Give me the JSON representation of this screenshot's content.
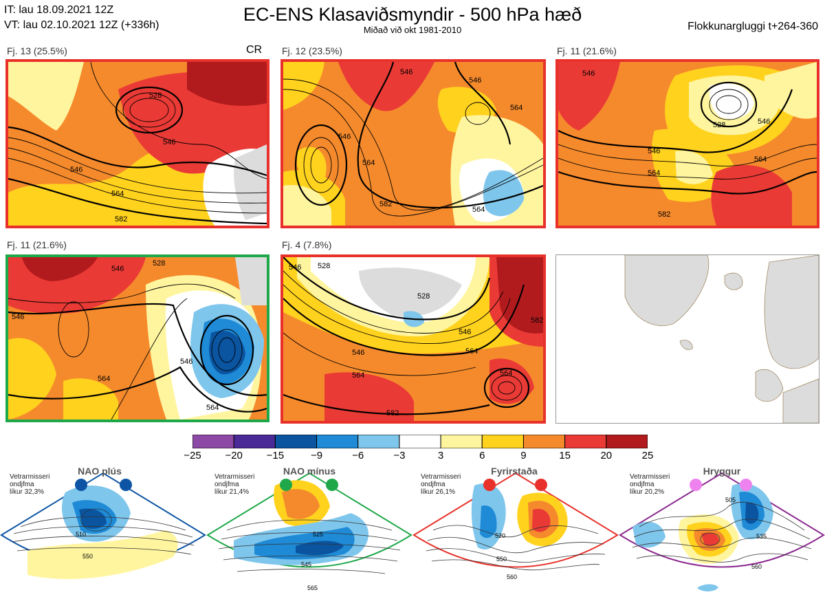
{
  "header": {
    "it_line": "IT: lau 18.09.2021 12Z",
    "vt_line": "VT: lau 02.10.2021 12Z  (+336h)",
    "title": "EC-ENS Klasaviðsmyndir - 500 hPa hæð",
    "subtitle": "Miðað við okt 1981-2010",
    "window": "Flokkunargluggi t+264-360"
  },
  "panels": [
    {
      "label": "Fj. 13 (25.5%)",
      "border_color": "#e8312a",
      "extra": "CR",
      "contours": [
        "528",
        "546",
        "546",
        "564",
        "582"
      ]
    },
    {
      "label": "Fj. 12 (23.5%)",
      "border_color": "#e8312a",
      "contours": [
        "546",
        "546",
        "546",
        "564",
        "564",
        "582",
        "564"
      ]
    },
    {
      "label": "Fj. 11 (21.6%)",
      "border_color": "#e8312a",
      "contours": [
        "546",
        "528",
        "546",
        "546",
        "564",
        "564",
        "582"
      ]
    },
    {
      "label": "Fj. 11 (21.6%)",
      "border_color": "#1fa84a",
      "contours": [
        "528",
        "546",
        "546",
        "546",
        "564",
        "564"
      ]
    },
    {
      "label": "Fj. 4 (7.8%)",
      "border_color": "#e8312a",
      "contours": [
        "546",
        "528",
        "528",
        "546",
        "546",
        "564",
        "564",
        "564",
        "582",
        "582"
      ]
    }
  ],
  "chart_data": {
    "type": "heatmap",
    "title": "EC-ENS Klasaviðsmyndir - 500 hPa hæð",
    "colorbar": {
      "ticks": [
        "−25",
        "−20",
        "−15",
        "−9",
        "−6",
        "−3",
        "3",
        "6",
        "9",
        "15",
        "20",
        "25"
      ],
      "colors": [
        "#8c4aa6",
        "#4a2a96",
        "#0a54a0",
        "#1f8ad6",
        "#7fc6ec",
        "#ffffff",
        "#fff59e",
        "#ffd21e",
        "#f58a2c",
        "#ea3a35",
        "#b21b1e"
      ]
    }
  },
  "regimes": [
    {
      "title": "NAO plús",
      "note": "Vetrarmisseri\nondjfma\nlíkur 32,3%",
      "color": "#0d55a4",
      "labels": [
        "510",
        "550"
      ]
    },
    {
      "title": "NAO mínus",
      "note": "Vetrarmisseri\nondjfma\nlíkur 21,4%",
      "color": "#1fa84a",
      "labels": [
        "525",
        "545",
        "565"
      ]
    },
    {
      "title": "Fyrirstaða",
      "note": "Vetrarmisseri\nondjfma\nlíkur 26,1%",
      "color": "#e8312a",
      "labels": [
        "520",
        "550",
        "560"
      ]
    },
    {
      "title": "Hryggur",
      "note": "Vetrarmisseri\nondjfma\nlíkur 20,2%",
      "color": "#8c2a8f",
      "labels": [
        "505",
        "535",
        "560"
      ]
    }
  ]
}
